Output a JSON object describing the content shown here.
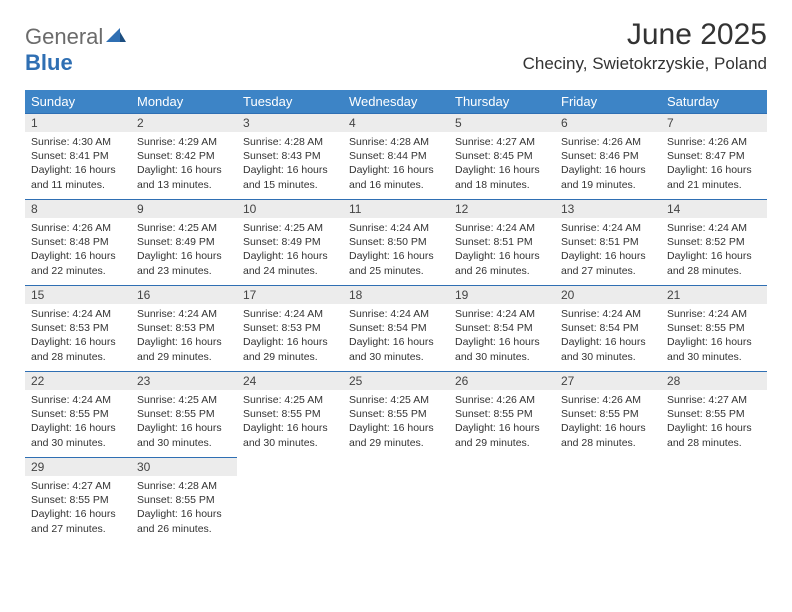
{
  "logo": {
    "part1": "General",
    "part2": "Blue"
  },
  "title": "June 2025",
  "location": "Checiny, Swietokrzyskie, Poland",
  "weekdays": [
    "Sunday",
    "Monday",
    "Tuesday",
    "Wednesday",
    "Thursday",
    "Friday",
    "Saturday"
  ],
  "colors": {
    "header_bg": "#3d84c6",
    "header_text": "#ffffff",
    "daynum_bg": "#ececec",
    "daynum_border": "#2f6fb3",
    "body_text": "#333333",
    "logo_gray": "#6b6b6b",
    "logo_blue": "#2f6fb3"
  },
  "fonts": {
    "title_size": 30,
    "loc_size": 17,
    "th_size": 13,
    "day_size": 12,
    "body_size": 10.5
  },
  "weeks": [
    [
      {
        "n": "1",
        "sr": "Sunrise: 4:30 AM",
        "ss": "Sunset: 8:41 PM",
        "dl": "Daylight: 16 hours and 11 minutes."
      },
      {
        "n": "2",
        "sr": "Sunrise: 4:29 AM",
        "ss": "Sunset: 8:42 PM",
        "dl": "Daylight: 16 hours and 13 minutes."
      },
      {
        "n": "3",
        "sr": "Sunrise: 4:28 AM",
        "ss": "Sunset: 8:43 PM",
        "dl": "Daylight: 16 hours and 15 minutes."
      },
      {
        "n": "4",
        "sr": "Sunrise: 4:28 AM",
        "ss": "Sunset: 8:44 PM",
        "dl": "Daylight: 16 hours and 16 minutes."
      },
      {
        "n": "5",
        "sr": "Sunrise: 4:27 AM",
        "ss": "Sunset: 8:45 PM",
        "dl": "Daylight: 16 hours and 18 minutes."
      },
      {
        "n": "6",
        "sr": "Sunrise: 4:26 AM",
        "ss": "Sunset: 8:46 PM",
        "dl": "Daylight: 16 hours and 19 minutes."
      },
      {
        "n": "7",
        "sr": "Sunrise: 4:26 AM",
        "ss": "Sunset: 8:47 PM",
        "dl": "Daylight: 16 hours and 21 minutes."
      }
    ],
    [
      {
        "n": "8",
        "sr": "Sunrise: 4:26 AM",
        "ss": "Sunset: 8:48 PM",
        "dl": "Daylight: 16 hours and 22 minutes."
      },
      {
        "n": "9",
        "sr": "Sunrise: 4:25 AM",
        "ss": "Sunset: 8:49 PM",
        "dl": "Daylight: 16 hours and 23 minutes."
      },
      {
        "n": "10",
        "sr": "Sunrise: 4:25 AM",
        "ss": "Sunset: 8:49 PM",
        "dl": "Daylight: 16 hours and 24 minutes."
      },
      {
        "n": "11",
        "sr": "Sunrise: 4:24 AM",
        "ss": "Sunset: 8:50 PM",
        "dl": "Daylight: 16 hours and 25 minutes."
      },
      {
        "n": "12",
        "sr": "Sunrise: 4:24 AM",
        "ss": "Sunset: 8:51 PM",
        "dl": "Daylight: 16 hours and 26 minutes."
      },
      {
        "n": "13",
        "sr": "Sunrise: 4:24 AM",
        "ss": "Sunset: 8:51 PM",
        "dl": "Daylight: 16 hours and 27 minutes."
      },
      {
        "n": "14",
        "sr": "Sunrise: 4:24 AM",
        "ss": "Sunset: 8:52 PM",
        "dl": "Daylight: 16 hours and 28 minutes."
      }
    ],
    [
      {
        "n": "15",
        "sr": "Sunrise: 4:24 AM",
        "ss": "Sunset: 8:53 PM",
        "dl": "Daylight: 16 hours and 28 minutes."
      },
      {
        "n": "16",
        "sr": "Sunrise: 4:24 AM",
        "ss": "Sunset: 8:53 PM",
        "dl": "Daylight: 16 hours and 29 minutes."
      },
      {
        "n": "17",
        "sr": "Sunrise: 4:24 AM",
        "ss": "Sunset: 8:53 PM",
        "dl": "Daylight: 16 hours and 29 minutes."
      },
      {
        "n": "18",
        "sr": "Sunrise: 4:24 AM",
        "ss": "Sunset: 8:54 PM",
        "dl": "Daylight: 16 hours and 30 minutes."
      },
      {
        "n": "19",
        "sr": "Sunrise: 4:24 AM",
        "ss": "Sunset: 8:54 PM",
        "dl": "Daylight: 16 hours and 30 minutes."
      },
      {
        "n": "20",
        "sr": "Sunrise: 4:24 AM",
        "ss": "Sunset: 8:54 PM",
        "dl": "Daylight: 16 hours and 30 minutes."
      },
      {
        "n": "21",
        "sr": "Sunrise: 4:24 AM",
        "ss": "Sunset: 8:55 PM",
        "dl": "Daylight: 16 hours and 30 minutes."
      }
    ],
    [
      {
        "n": "22",
        "sr": "Sunrise: 4:24 AM",
        "ss": "Sunset: 8:55 PM",
        "dl": "Daylight: 16 hours and 30 minutes."
      },
      {
        "n": "23",
        "sr": "Sunrise: 4:25 AM",
        "ss": "Sunset: 8:55 PM",
        "dl": "Daylight: 16 hours and 30 minutes."
      },
      {
        "n": "24",
        "sr": "Sunrise: 4:25 AM",
        "ss": "Sunset: 8:55 PM",
        "dl": "Daylight: 16 hours and 30 minutes."
      },
      {
        "n": "25",
        "sr": "Sunrise: 4:25 AM",
        "ss": "Sunset: 8:55 PM",
        "dl": "Daylight: 16 hours and 29 minutes."
      },
      {
        "n": "26",
        "sr": "Sunrise: 4:26 AM",
        "ss": "Sunset: 8:55 PM",
        "dl": "Daylight: 16 hours and 29 minutes."
      },
      {
        "n": "27",
        "sr": "Sunrise: 4:26 AM",
        "ss": "Sunset: 8:55 PM",
        "dl": "Daylight: 16 hours and 28 minutes."
      },
      {
        "n": "28",
        "sr": "Sunrise: 4:27 AM",
        "ss": "Sunset: 8:55 PM",
        "dl": "Daylight: 16 hours and 28 minutes."
      }
    ],
    [
      {
        "n": "29",
        "sr": "Sunrise: 4:27 AM",
        "ss": "Sunset: 8:55 PM",
        "dl": "Daylight: 16 hours and 27 minutes."
      },
      {
        "n": "30",
        "sr": "Sunrise: 4:28 AM",
        "ss": "Sunset: 8:55 PM",
        "dl": "Daylight: 16 hours and 26 minutes."
      },
      null,
      null,
      null,
      null,
      null
    ]
  ]
}
